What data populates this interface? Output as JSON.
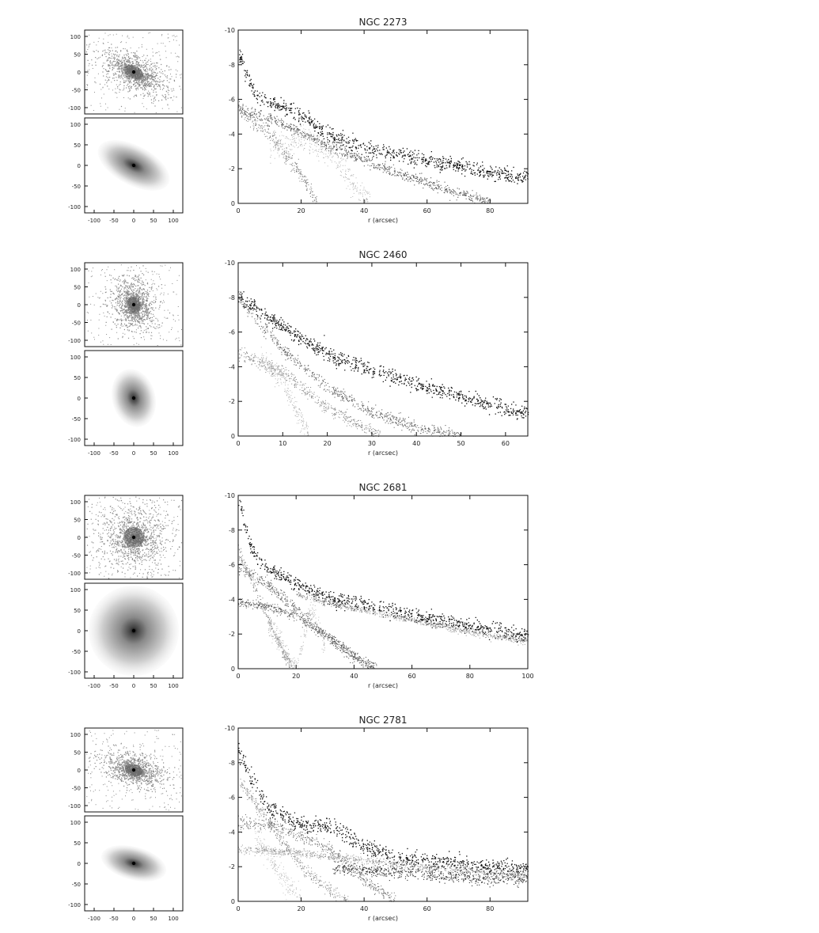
{
  "panels": [
    {
      "title": "NGC 2273",
      "thumb_top": {
        "ticks_y": [
          "100",
          "50",
          "0",
          "-50",
          "-100"
        ]
      },
      "thumb_bottom": {
        "ticks_y": [
          "100",
          "50",
          "0",
          "-50",
          "-100"
        ],
        "ticks_x": [
          "-100",
          "-50",
          "0",
          "50",
          "100"
        ],
        "ellipse": {
          "rx": 1.0,
          "ry": 0.5,
          "angle_deg": 28
        }
      },
      "chart_data": {
        "type": "scatter",
        "title": "NGC 2273",
        "xlabel": "r (arcsec)",
        "ylabel": "",
        "xlim": [
          0,
          92
        ],
        "ylim": [
          0,
          -10
        ],
        "x_ticks": [
          "0",
          "20",
          "40",
          "60",
          "80"
        ],
        "y_ticks": [
          "-10",
          "-8",
          "-6",
          "-4",
          "-2",
          "0"
        ],
        "series": [
          {
            "color": "#111111",
            "size": 1.3,
            "spread": 0.35,
            "points": [
              [
                0,
                -8.8
              ],
              [
                5,
                -6.3
              ],
              [
                10,
                -5.8
              ],
              [
                15,
                -5.6
              ],
              [
                20,
                -5.1
              ],
              [
                30,
                -3.8
              ],
              [
                40,
                -3.2
              ],
              [
                60,
                -2.5
              ],
              [
                80,
                -1.8
              ],
              [
                92,
                -1.5
              ]
            ]
          },
          {
            "color": "#555555",
            "size": 1.1,
            "spread": 0.25,
            "points": [
              [
                0,
                -5.4
              ],
              [
                10,
                -4.9
              ],
              [
                20,
                -4.1
              ],
              [
                30,
                -3.2
              ],
              [
                40,
                -2.5
              ],
              [
                50,
                -1.8
              ],
              [
                60,
                -1.2
              ],
              [
                70,
                -0.6
              ],
              [
                80,
                -0.1
              ]
            ]
          },
          {
            "color": "#777777",
            "size": 1.0,
            "spread": 0.4,
            "points": [
              [
                0,
                -5.6
              ],
              [
                10,
                -4.0
              ],
              [
                20,
                -1.6
              ],
              [
                25,
                0
              ]
            ]
          },
          {
            "color": "#aaaaaa",
            "size": 0.9,
            "spread": 0.6,
            "points": [
              [
                10,
                -3.2
              ],
              [
                20,
                -3.8
              ],
              [
                30,
                -2.8
              ],
              [
                38,
                -0.8
              ],
              [
                42,
                0
              ]
            ]
          }
        ]
      }
    },
    {
      "title": "NGC 2460",
      "thumb_top": {
        "ticks_y": [
          "100",
          "50",
          "0",
          "-50",
          "-100"
        ]
      },
      "thumb_bottom": {
        "ticks_y": [
          "100",
          "50",
          "0",
          "-50",
          "-100"
        ],
        "ticks_x": [
          "-100",
          "-50",
          "0",
          "50",
          "100"
        ],
        "ellipse": {
          "rx": 0.55,
          "ry": 0.75,
          "angle_deg": -15
        }
      },
      "chart_data": {
        "type": "scatter",
        "title": "NGC 2460",
        "xlabel": "r (arcsec)",
        "ylabel": "",
        "xlim": [
          0,
          65
        ],
        "ylim": [
          0,
          -10
        ],
        "x_ticks": [
          "0",
          "10",
          "20",
          "30",
          "40",
          "50",
          "60"
        ],
        "y_ticks": [
          "-10",
          "-8",
          "-6",
          "-4",
          "-2",
          "0"
        ],
        "series": [
          {
            "color": "#111111",
            "size": 1.3,
            "spread": 0.35,
            "points": [
              [
                0,
                -8.1
              ],
              [
                10,
                -6.3
              ],
              [
                20,
                -4.7
              ],
              [
                30,
                -3.8
              ],
              [
                40,
                -3.0
              ],
              [
                50,
                -2.3
              ],
              [
                60,
                -1.6
              ],
              [
                65,
                -1.3
              ]
            ]
          },
          {
            "color": "#666666",
            "size": 1.1,
            "spread": 0.3,
            "points": [
              [
                0,
                -8.0
              ],
              [
                10,
                -5.0
              ],
              [
                20,
                -2.8
              ],
              [
                30,
                -1.4
              ],
              [
                40,
                -0.5
              ],
              [
                50,
                0
              ]
            ]
          },
          {
            "color": "#888888",
            "size": 1.0,
            "spread": 0.3,
            "points": [
              [
                0,
                -4.8
              ],
              [
                10,
                -3.7
              ],
              [
                20,
                -1.6
              ],
              [
                32,
                0
              ]
            ]
          },
          {
            "color": "#aaaaaa",
            "size": 0.9,
            "spread": 0.5,
            "points": [
              [
                5,
                -4.5
              ],
              [
                10,
                -3.2
              ],
              [
                13,
                -1.5
              ],
              [
                16,
                0
              ]
            ]
          }
        ]
      }
    },
    {
      "title": "NGC 2681",
      "thumb_top": {
        "ticks_y": [
          "100",
          "50",
          "0",
          "-50",
          "-100"
        ]
      },
      "thumb_bottom": {
        "ticks_y": [
          "100",
          "50",
          "0",
          "-50",
          "-100"
        ],
        "ticks_x": [
          "-100",
          "-50",
          "0",
          "50",
          "100"
        ],
        "ellipse": {
          "rx": 1.0,
          "ry": 1.0,
          "angle_deg": 0
        }
      },
      "chart_data": {
        "type": "scatter",
        "title": "NGC 2681",
        "xlabel": "r (arcsec)",
        "ylabel": "",
        "xlim": [
          0,
          100
        ],
        "ylim": [
          0,
          -10
        ],
        "x_ticks": [
          "0",
          "20",
          "40",
          "60",
          "80",
          "100"
        ],
        "y_ticks": [
          "-10",
          "-8",
          "-6",
          "-4",
          "-2",
          "0"
        ],
        "series": [
          {
            "color": "#111111",
            "size": 1.3,
            "spread": 0.35,
            "points": [
              [
                0,
                -9.8
              ],
              [
                5,
                -6.7
              ],
              [
                10,
                -5.8
              ],
              [
                20,
                -4.9
              ],
              [
                30,
                -4.1
              ],
              [
                40,
                -3.8
              ],
              [
                60,
                -3.1
              ],
              [
                80,
                -2.5
              ],
              [
                100,
                -1.9
              ]
            ]
          },
          {
            "color": "#999999",
            "size": 1.0,
            "spread": 0.15,
            "points": [
              [
                20,
                -4.3
              ],
              [
                40,
                -3.5
              ],
              [
                60,
                -2.8
              ],
              [
                80,
                -2.1
              ],
              [
                100,
                -1.6
              ]
            ]
          },
          {
            "color": "#666666",
            "size": 1.1,
            "spread": 0.3,
            "points": [
              [
                0,
                -5.9
              ],
              [
                10,
                -4.9
              ],
              [
                20,
                -3.4
              ],
              [
                30,
                -1.9
              ],
              [
                40,
                -0.7
              ],
              [
                48,
                0
              ]
            ]
          },
          {
            "color": "#555555",
            "size": 1.0,
            "spread": 0.2,
            "points": [
              [
                0,
                -3.8
              ],
              [
                10,
                -3.6
              ],
              [
                20,
                -3.0
              ],
              [
                30,
                -2.0
              ],
              [
                40,
                -0.8
              ],
              [
                46,
                0
              ]
            ]
          },
          {
            "color": "#888888",
            "size": 1.0,
            "spread": 0.3,
            "points": [
              [
                0,
                -6.7
              ],
              [
                5,
                -5.0
              ],
              [
                10,
                -3.0
              ],
              [
                15,
                -1.1
              ],
              [
                19,
                0
              ]
            ]
          },
          {
            "color": "#aaaaaa",
            "size": 0.9,
            "spread": 0.5,
            "points": [
              [
                10,
                -2.5
              ],
              [
                15,
                -1.5
              ],
              [
                20,
                0
              ],
              [
                25,
                -3.6
              ],
              [
                30,
                -1.3
              ]
            ]
          }
        ]
      }
    },
    {
      "title": "NGC 2781",
      "thumb_top": {
        "ticks_y": [
          "100",
          "50",
          "0",
          "-50",
          "-100"
        ]
      },
      "thumb_bottom": {
        "ticks_y": [
          "100",
          "50",
          "0",
          "-50",
          "-100"
        ],
        "ticks_x": [
          "-100",
          "-50",
          "0",
          "50",
          "100"
        ],
        "ellipse": {
          "rx": 0.85,
          "ry": 0.42,
          "angle_deg": 15
        }
      },
      "chart_data": {
        "type": "scatter",
        "title": "NGC 2781",
        "xlabel": "r (arcsec)",
        "ylabel": "",
        "xlim": [
          0,
          92
        ],
        "ylim": [
          0,
          -10
        ],
        "x_ticks": [
          "0",
          "20",
          "40",
          "60",
          "80"
        ],
        "y_ticks": [
          "-10",
          "-8",
          "-6",
          "-4",
          "-2",
          "0"
        ],
        "series": [
          {
            "color": "#111111",
            "size": 1.3,
            "spread": 0.4,
            "points": [
              [
                0,
                -8.7
              ],
              [
                5,
                -6.8
              ],
              [
                10,
                -5.3
              ],
              [
                20,
                -4.5
              ],
              [
                30,
                -4.3
              ],
              [
                40,
                -3.2
              ],
              [
                50,
                -2.5
              ],
              [
                60,
                -2.3
              ],
              [
                80,
                -2.0
              ],
              [
                92,
                -1.8
              ]
            ]
          },
          {
            "color": "#333333",
            "size": 1.1,
            "spread": 0.3,
            "points": [
              [
                30,
                -1.9
              ],
              [
                50,
                -1.7
              ],
              [
                70,
                -1.4
              ],
              [
                92,
                -1.3
              ]
            ]
          },
          {
            "color": "#666666",
            "size": 1.0,
            "spread": 0.3,
            "points": [
              [
                0,
                -4.5
              ],
              [
                10,
                -4.4
              ],
              [
                20,
                -3.8
              ],
              [
                30,
                -2.9
              ],
              [
                40,
                -1.3
              ],
              [
                50,
                0
              ]
            ]
          },
          {
            "color": "#888888",
            "size": 1.0,
            "spread": 0.3,
            "points": [
              [
                0,
                -7.0
              ],
              [
                10,
                -4.5
              ],
              [
                20,
                -2.0
              ],
              [
                30,
                -0.5
              ],
              [
                35,
                0
              ]
            ]
          },
          {
            "color": "#999999",
            "size": 1.0,
            "spread": 0.2,
            "points": [
              [
                0,
                -3.0
              ],
              [
                20,
                -2.8
              ],
              [
                40,
                -2.4
              ],
              [
                60,
                -2.0
              ],
              [
                80,
                -1.7
              ],
              [
                92,
                -1.5
              ]
            ]
          },
          {
            "color": "#bbbbbb",
            "size": 0.9,
            "spread": 0.6,
            "points": [
              [
                5,
                -4.0
              ],
              [
                10,
                -2.5
              ],
              [
                15,
                -1.2
              ],
              [
                20,
                0
              ]
            ]
          }
        ]
      }
    }
  ]
}
